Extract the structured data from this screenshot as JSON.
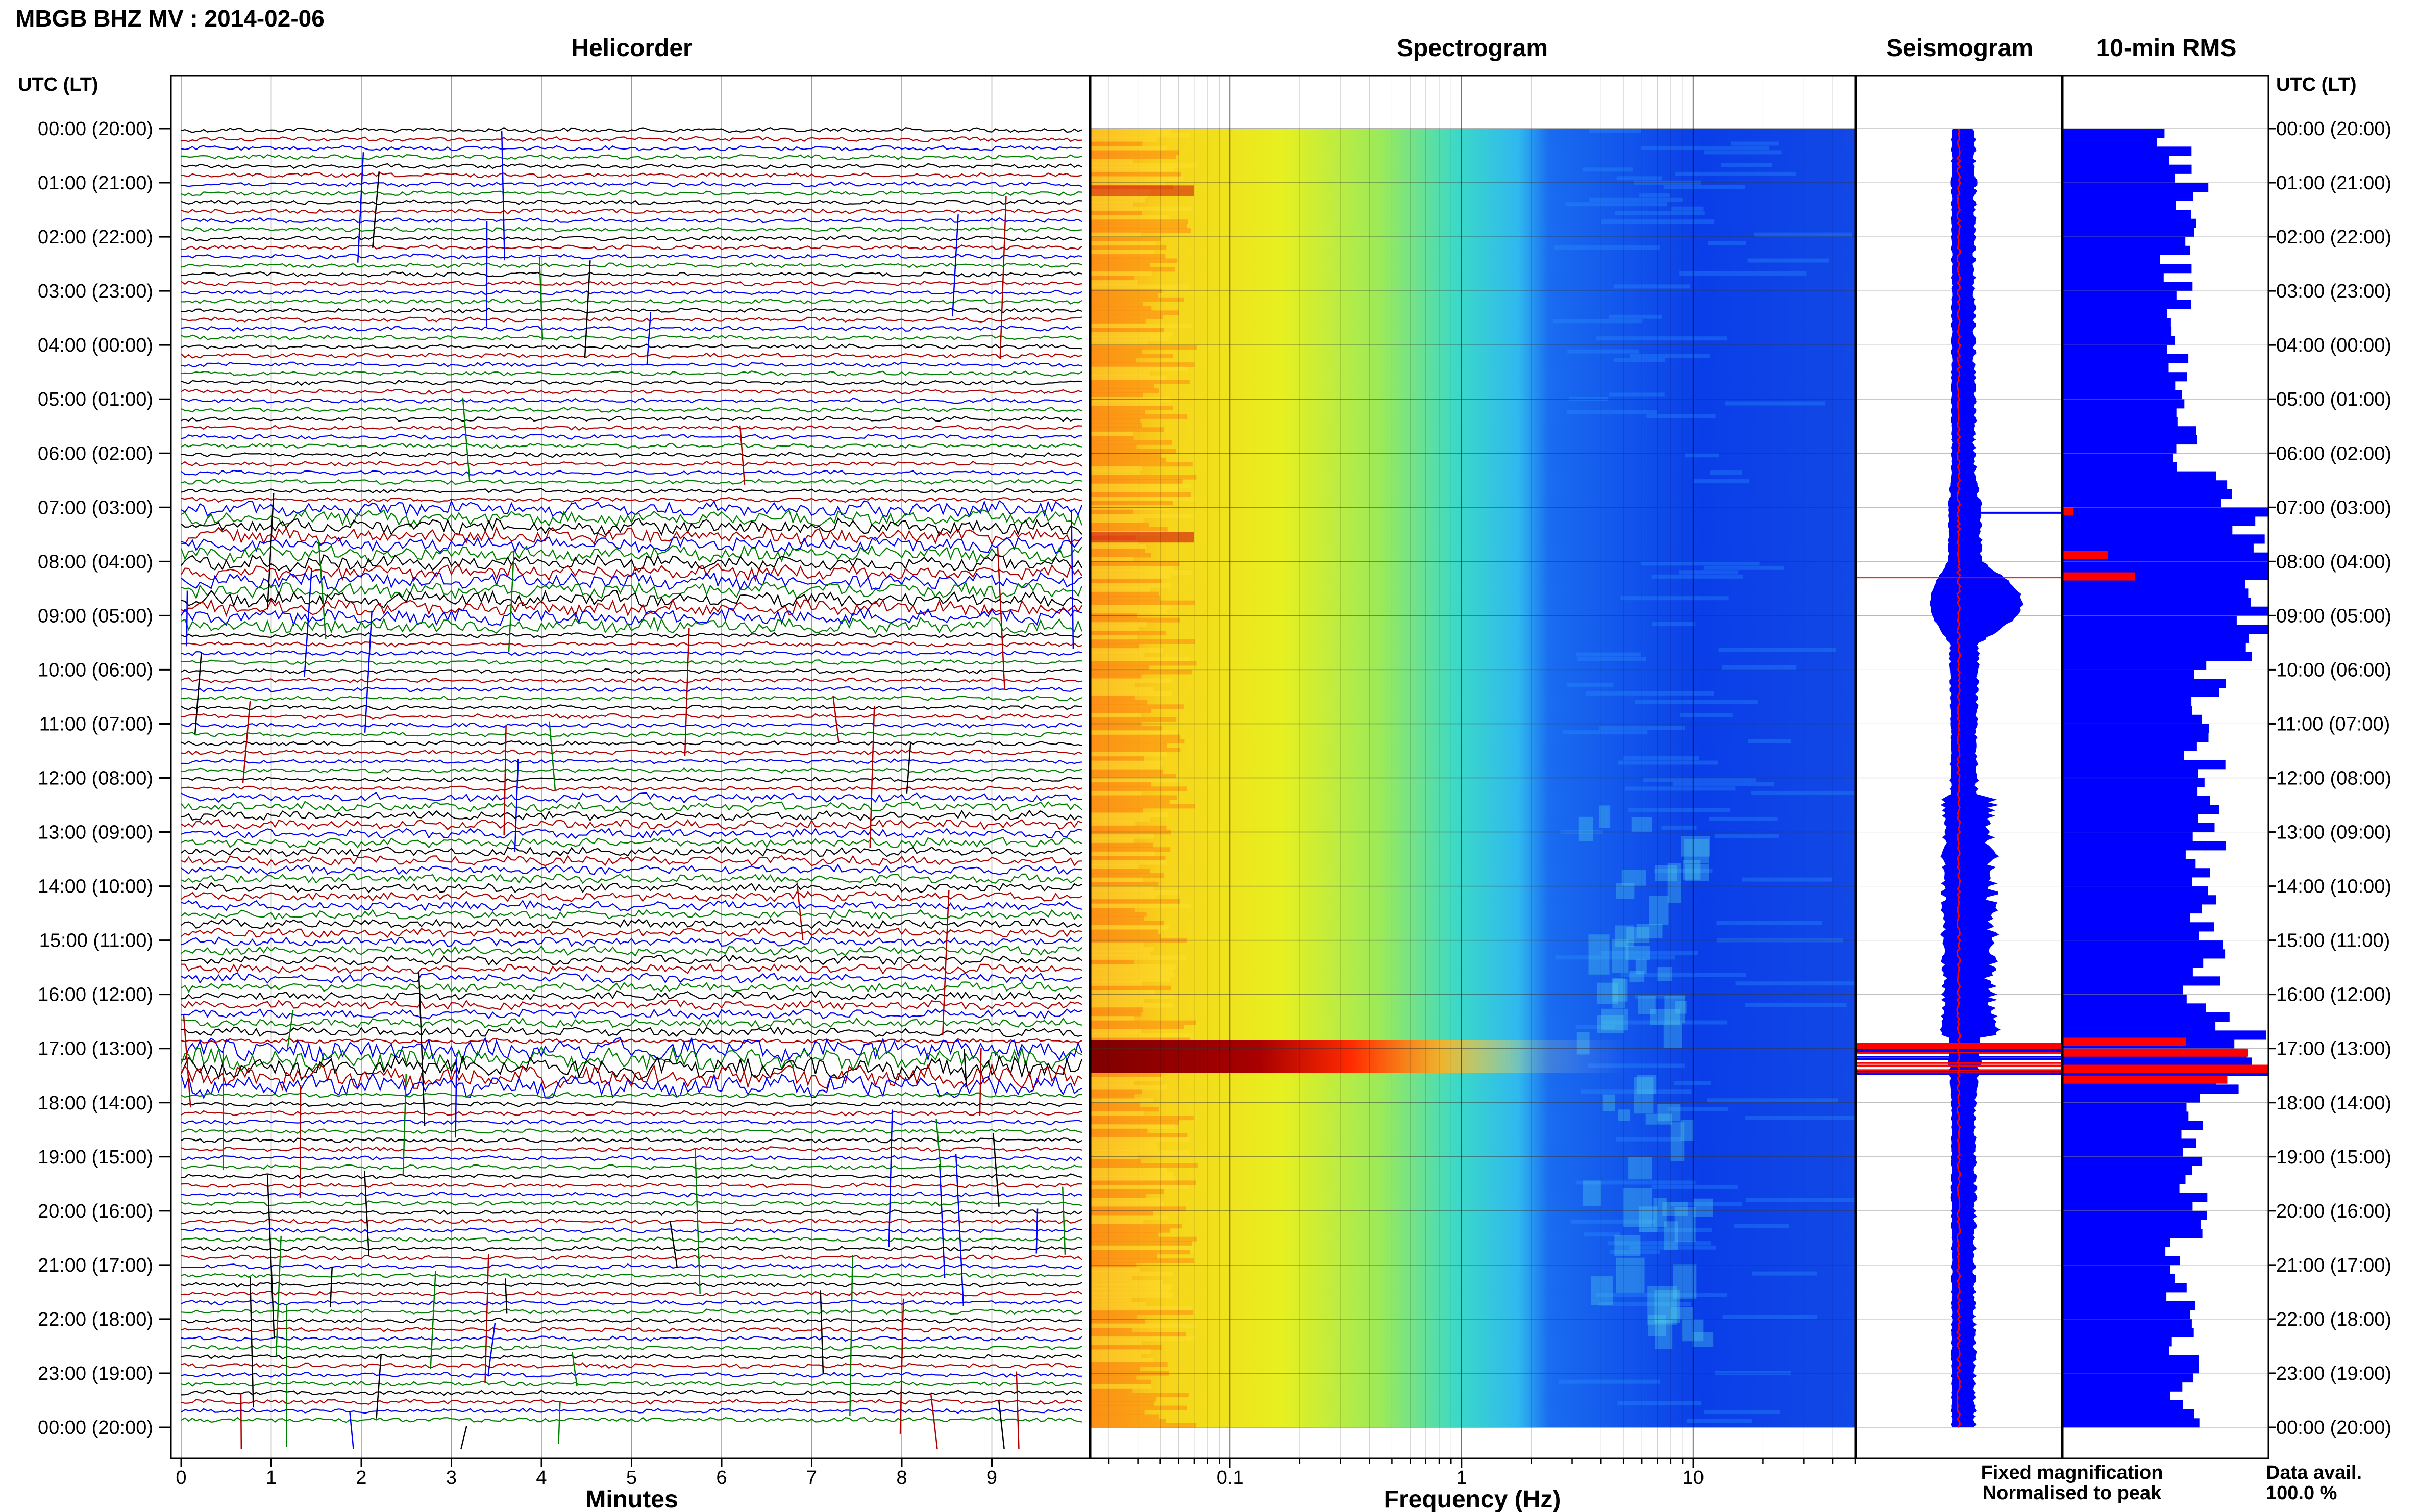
{
  "header": {
    "title": "MBGB BHZ MV : 2014-02-06"
  },
  "panels": {
    "helicorder": "Helicorder",
    "spectrogram": "Spectrogram",
    "seismogram": "Seismogram",
    "rms": "10-min RMS"
  },
  "axes": {
    "left_label": "UTC (LT)",
    "right_label": "UTC (LT)",
    "helicorder_xlabel": "Minutes",
    "spectrogram_xlabel": "Frequency (Hz)"
  },
  "legend": {
    "fixed": "Fixed magnification",
    "fixed_color": "#0000ff",
    "normalised": "Normalised to peak",
    "normalised_color": "#ff0000"
  },
  "data_avail": {
    "label": "Data avail.",
    "value": "100.0 %"
  },
  "chart_data": {
    "type": "line",
    "time_ticks": [
      "00:00 (20:00)",
      "01:00 (21:00)",
      "02:00 (22:00)",
      "03:00 (23:00)",
      "04:00 (00:00)",
      "05:00 (01:00)",
      "06:00 (02:00)",
      "07:00 (03:00)",
      "08:00 (04:00)",
      "09:00 (05:00)",
      "10:00 (06:00)",
      "11:00 (07:00)",
      "12:00 (08:00)",
      "13:00 (09:00)",
      "14:00 (10:00)",
      "15:00 (11:00)",
      "16:00 (12:00)",
      "17:00 (13:00)",
      "18:00 (14:00)",
      "19:00 (15:00)",
      "20:00 (16:00)",
      "21:00 (17:00)",
      "22:00 (18:00)",
      "23:00 (19:00)",
      "00:00 (20:00)"
    ],
    "helicorder": {
      "x_ticks": [
        "0",
        "1",
        "2",
        "3",
        "4",
        "5",
        "6",
        "7",
        "8",
        "9"
      ],
      "xlim": [
        0,
        10
      ],
      "trace_colors": [
        "#000000",
        "#b00000",
        "#0000ff",
        "#008000"
      ],
      "events": [
        {
          "start_hour": 7.0,
          "end_hour": 9.3,
          "level": 0.6
        },
        {
          "start_hour": 16.9,
          "end_hour": 17.7,
          "level": 1.0
        }
      ]
    },
    "spectrogram": {
      "x_scale": "log",
      "x_ticks": [
        "0.1",
        "1",
        "10"
      ],
      "xlim": [
        0.025,
        50
      ],
      "bands": [
        {
          "start_hour": 16.85,
          "end_hour": 17.45,
          "intensity": 1.0
        },
        {
          "start_hour": 1.05,
          "end_hour": 1.25,
          "intensity": 0.55
        },
        {
          "start_hour": 7.45,
          "end_hour": 7.65,
          "intensity": 0.6
        }
      ]
    },
    "rms": {
      "bin_minutes": 10,
      "hourly_relative": [
        0.52,
        0.62,
        0.55,
        0.55,
        0.55,
        0.62,
        0.55,
        0.95,
        1.0,
        0.98,
        0.75,
        0.66,
        0.72,
        0.7,
        0.7,
        0.7,
        0.68,
        1.0,
        0.65,
        0.6,
        0.62,
        0.55,
        0.57,
        0.6
      ],
      "normalised_peaks": [
        {
          "hour": 7.0,
          "value": 0.05
        },
        {
          "hour": 7.8,
          "value": 0.22
        },
        {
          "hour": 8.2,
          "value": 0.35
        },
        {
          "hour": 16.8,
          "value": 0.6
        },
        {
          "hour": 17.0,
          "value": 0.9
        },
        {
          "hour": 17.3,
          "value": 1.0
        },
        {
          "hour": 17.5,
          "value": 0.8
        }
      ]
    }
  }
}
